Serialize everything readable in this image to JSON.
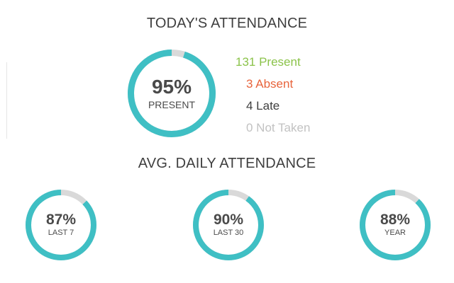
{
  "colors": {
    "ring_fill": "#3fbfc4",
    "ring_track": "#d9d9d9",
    "present": "#8bc34a",
    "absent": "#e8643c",
    "late": "#3f3f3f",
    "not_taken": "#c2c2c2"
  },
  "today": {
    "title": "TODAY'S ATTENDANCE",
    "ring": {
      "pct_text": "95%",
      "label": "PRESENT",
      "fraction": 0.95
    },
    "legend": {
      "present": "131 Present",
      "absent": "3 Absent",
      "late": "4 Late",
      "not_taken": "0 Not Taken"
    }
  },
  "average": {
    "title": "AVG. DAILY ATTENDANCE",
    "rings": [
      {
        "pct_text": "87%",
        "label": "LAST 7",
        "fraction": 0.87
      },
      {
        "pct_text": "90%",
        "label": "LAST 30",
        "fraction": 0.9
      },
      {
        "pct_text": "88%",
        "label": "YEAR",
        "fraction": 0.88
      }
    ]
  }
}
